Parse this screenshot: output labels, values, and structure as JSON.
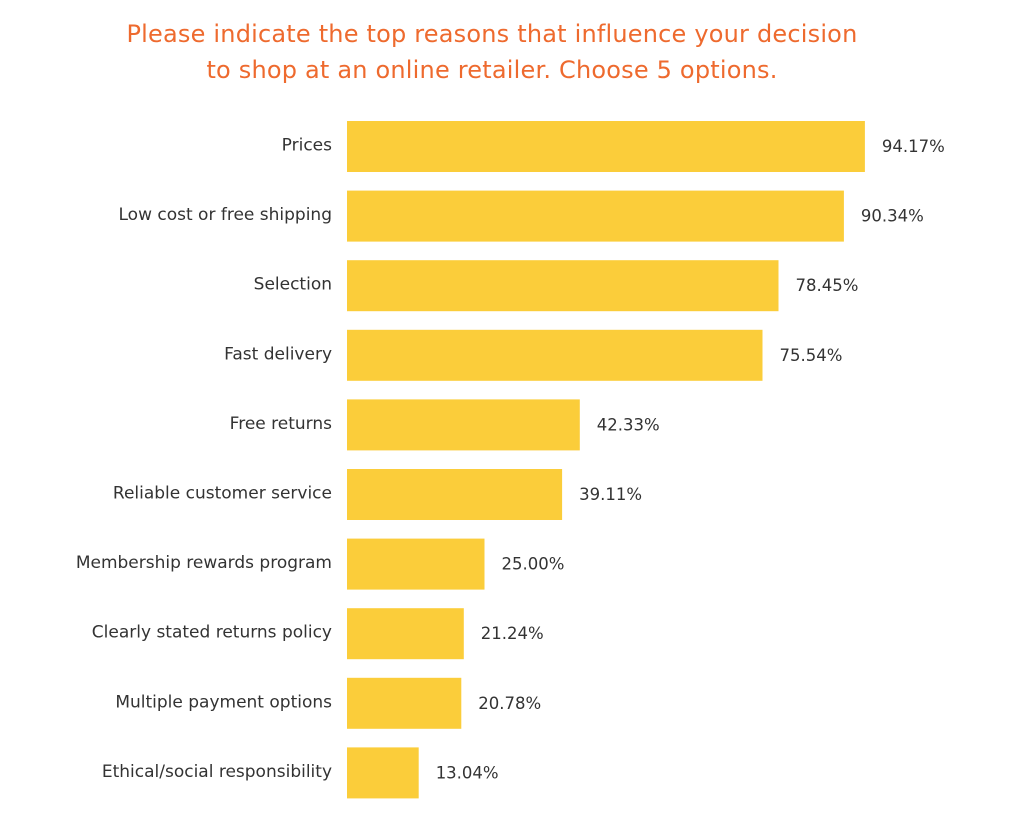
{
  "chart_data": {
    "type": "bar",
    "orientation": "horizontal",
    "title_lines": [
      "Please indicate the top reasons that influence your decision",
      "to shop at an online retailer. Choose 5 options."
    ],
    "categories": [
      "Prices",
      "Low cost or free shipping",
      "Selection",
      "Fast delivery",
      "Free returns",
      "Reliable customer service",
      "Membership rewards program",
      "Clearly stated returns policy",
      "Multiple payment options",
      "Ethical/social responsibility"
    ],
    "values": [
      94.17,
      90.34,
      78.45,
      75.54,
      42.33,
      39.11,
      25.0,
      21.24,
      20.78,
      13.04
    ],
    "value_labels": [
      "94.17%",
      "90.34%",
      "78.45%",
      "75.54%",
      "42.33%",
      "39.11%",
      "25.00%",
      "21.24%",
      "20.78%",
      "13.04%"
    ],
    "xlim": [
      0,
      100
    ],
    "grid": false,
    "legend": "none",
    "colors": {
      "bar": "#fbcd3a",
      "title": "#ee6a2e",
      "text": "#333333"
    }
  }
}
